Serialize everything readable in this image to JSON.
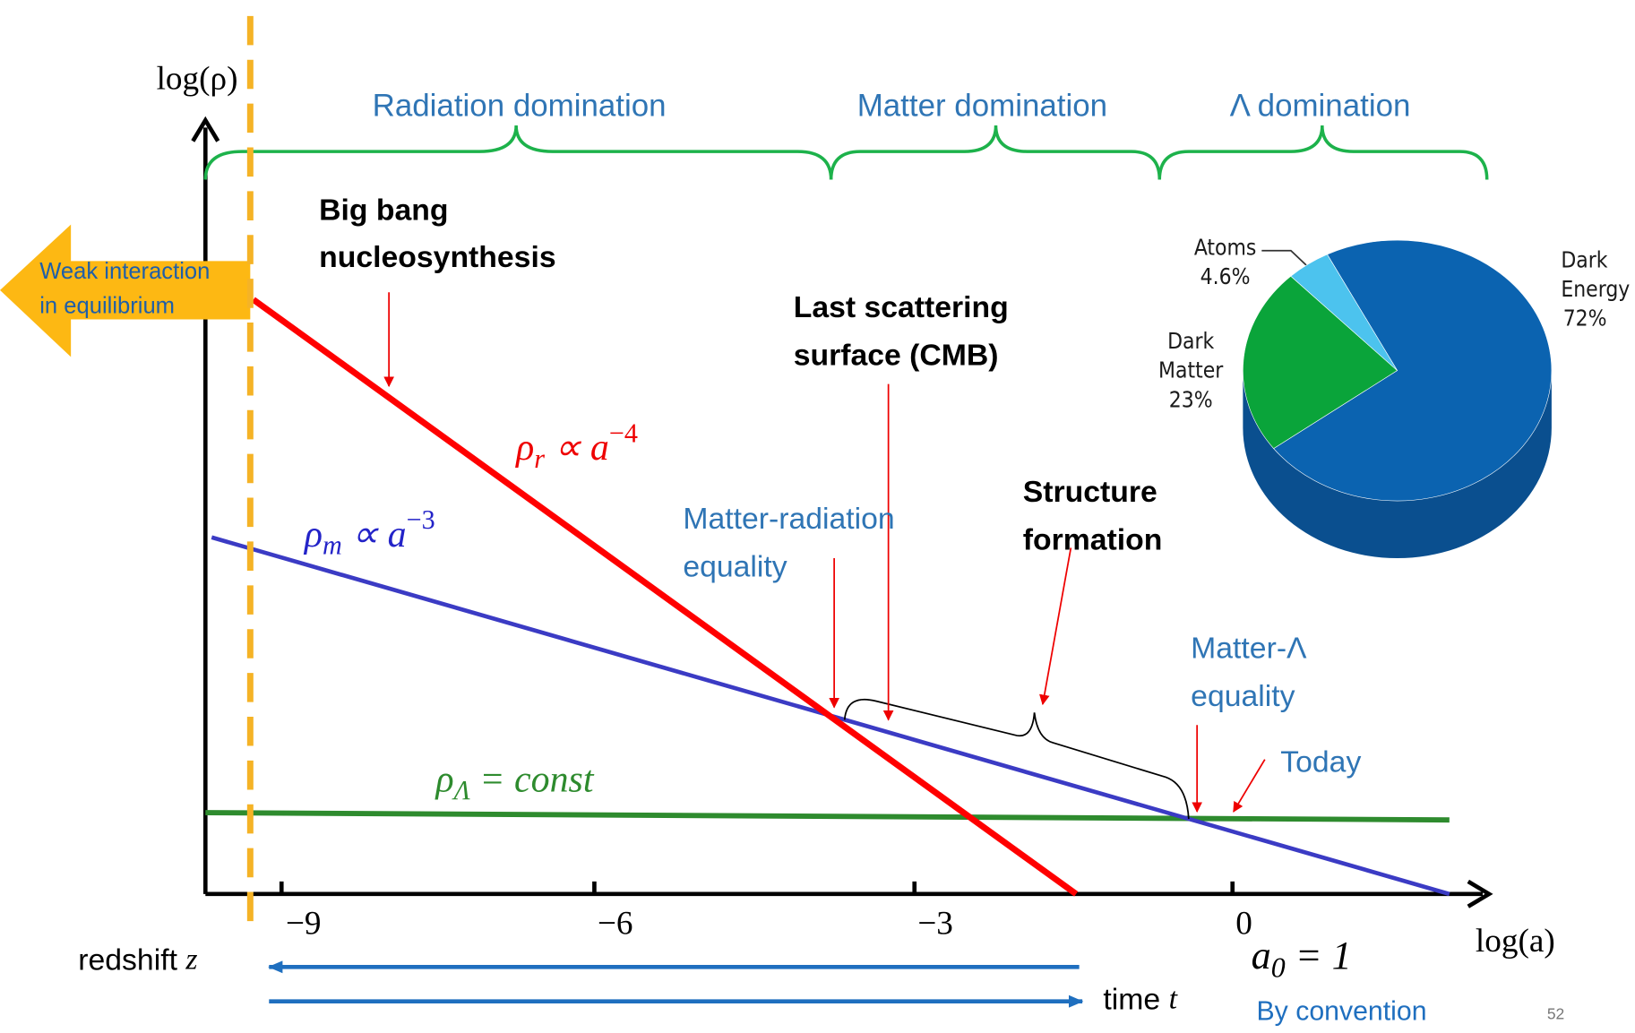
{
  "axes": {
    "y_label": "log(ρ)",
    "x_label": "log(a)",
    "x_ticks": [
      "−9",
      "−6",
      "−3",
      "0"
    ]
  },
  "eras": [
    "Radiation domination",
    "Matter domination",
    "Λ domination"
  ],
  "curves": {
    "radiation": {
      "base": "ρ",
      "sub": "r",
      "rest": " ∝ a",
      "sup": "−4"
    },
    "matter": {
      "base": "ρ",
      "sub": "m",
      "rest": " ∝ a",
      "sup": "−3"
    },
    "lambda": {
      "base": "ρ",
      "sub": "Λ",
      "rest": " = const"
    }
  },
  "annotations": {
    "weak": [
      "Weak interaction",
      "in equilibrium"
    ],
    "bbn": [
      "Big bang",
      "nucleosynthesis"
    ],
    "cmb": [
      "Last scattering",
      "surface (CMB)"
    ],
    "mr_eq": [
      "Matter-radiation",
      "equality"
    ],
    "structure": [
      "Structure",
      "formation"
    ],
    "ml_eq": [
      "Matter-Λ",
      "equality"
    ],
    "today": "Today"
  },
  "bottom": {
    "redshift": [
      "redshift",
      "z"
    ],
    "time": [
      "time",
      "t"
    ],
    "a0": {
      "base": "a",
      "sub": "0",
      "rest": " = 1"
    },
    "convention": "By convention"
  },
  "pie": {
    "slices": [
      {
        "name_lines": [
          "Dark",
          "Energy"
        ],
        "value": 72,
        "label": "72%",
        "color": "#0b63b0"
      },
      {
        "name_lines": [
          "Dark",
          "Matter"
        ],
        "value": 23,
        "label": "23%",
        "color": "#0aa43a"
      },
      {
        "name_lines": [
          "Atoms"
        ],
        "value": 4.6,
        "label": "4.6%",
        "color": "#4cc3ee"
      }
    ]
  },
  "page_number": "52"
}
